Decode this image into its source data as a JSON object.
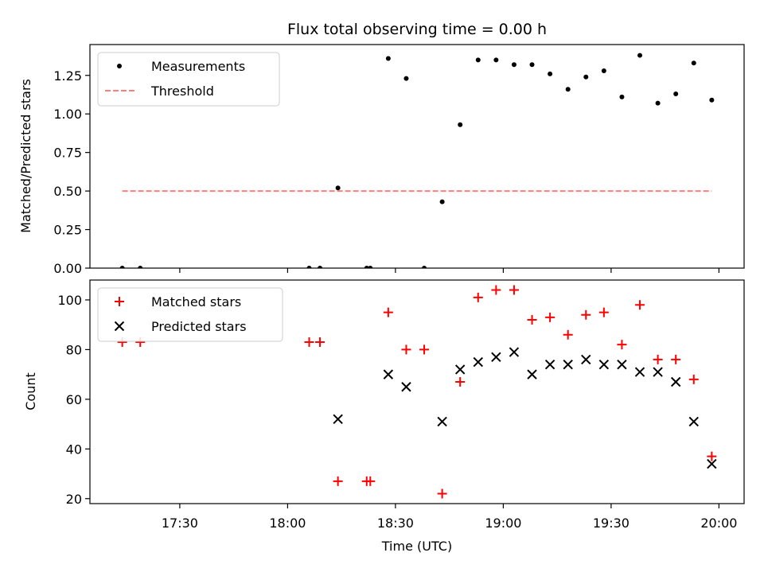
{
  "chart_data": {
    "type": "scatter",
    "title": "Flux total observing time = 0.00 h",
    "xlabel": "Time (UTC)",
    "x_tick_labels": [
      "17:30",
      "18:00",
      "18:30",
      "19:00",
      "19:30",
      "20:00"
    ],
    "x_tick_values": [
      "17:30",
      "18:00",
      "18:30",
      "19:00",
      "19:30",
      "20:00"
    ],
    "x_range": [
      "17:05",
      "20:07"
    ],
    "panels": [
      {
        "ylabel": "Matched/Predicted stars",
        "ylim": [
          0,
          1.45
        ],
        "y_ticks": [
          0.0,
          0.25,
          0.5,
          0.75,
          1.0,
          1.25
        ],
        "y_tick_labels": [
          "0.00",
          "0.25",
          "0.50",
          "0.75",
          "1.00",
          "1.25"
        ],
        "legend_position": "top-left",
        "series": [
          {
            "name": "Measurements",
            "marker": "dot",
            "color": "#000000",
            "x": [
              "17:14",
              "17:19",
              "18:06",
              "18:09",
              "18:14",
              "18:22",
              "18:23",
              "18:28",
              "18:33",
              "18:38",
              "18:43",
              "18:48",
              "18:53",
              "18:58",
              "19:03",
              "19:08",
              "19:13",
              "19:18",
              "19:23",
              "19:28",
              "19:33",
              "19:38",
              "19:43",
              "19:48",
              "19:53",
              "19:58"
            ],
            "y": [
              0,
              0,
              0,
              0,
              0.52,
              0,
              0,
              1.36,
              1.23,
              0,
              0.43,
              0.93,
              1.35,
              1.35,
              1.32,
              1.32,
              1.26,
              1.16,
              1.24,
              1.28,
              1.11,
              1.38,
              1.07,
              1.13,
              1.33,
              1.09
            ]
          },
          {
            "name": "Threshold",
            "marker": "dashed-line",
            "color": "#ff7f7f",
            "x": [
              "17:14",
              "19:58"
            ],
            "y": [
              0.5,
              0.5
            ]
          }
        ]
      },
      {
        "ylabel": "Count",
        "ylim": [
          18,
          108
        ],
        "y_ticks": [
          20,
          40,
          60,
          80,
          100
        ],
        "y_tick_labels": [
          "20",
          "40",
          "60",
          "80",
          "100"
        ],
        "legend_position": "top-left",
        "series": [
          {
            "name": "Matched stars",
            "marker": "plus",
            "color": "#ff0000",
            "x": [
              "17:14",
              "17:19",
              "18:06",
              "18:09",
              "18:14",
              "18:22",
              "18:23",
              "18:28",
              "18:33",
              "18:38",
              "18:43",
              "18:48",
              "18:53",
              "18:58",
              "19:03",
              "19:08",
              "19:13",
              "19:18",
              "19:23",
              "19:28",
              "19:33",
              "19:38",
              "19:43",
              "19:48",
              "19:53",
              "19:58"
            ],
            "y": [
              83,
              83,
              83,
              83,
              27,
              27,
              27,
              95,
              80,
              80,
              22,
              67,
              101,
              104,
              104,
              92,
              93,
              86,
              94,
              95,
              82,
              98,
              76,
              76,
              68,
              37
            ]
          },
          {
            "name": "Predicted stars",
            "marker": "x",
            "color": "#000000",
            "x": [
              "18:14",
              "18:28",
              "18:33",
              "18:43",
              "18:48",
              "18:53",
              "18:58",
              "19:03",
              "19:08",
              "19:13",
              "19:18",
              "19:23",
              "19:28",
              "19:33",
              "19:38",
              "19:43",
              "19:48",
              "19:53",
              "19:58"
            ],
            "y": [
              52,
              70,
              65,
              51,
              72,
              75,
              77,
              79,
              70,
              74,
              74,
              76,
              74,
              74,
              71,
              71,
              67,
              51,
              34
            ]
          }
        ]
      }
    ]
  }
}
